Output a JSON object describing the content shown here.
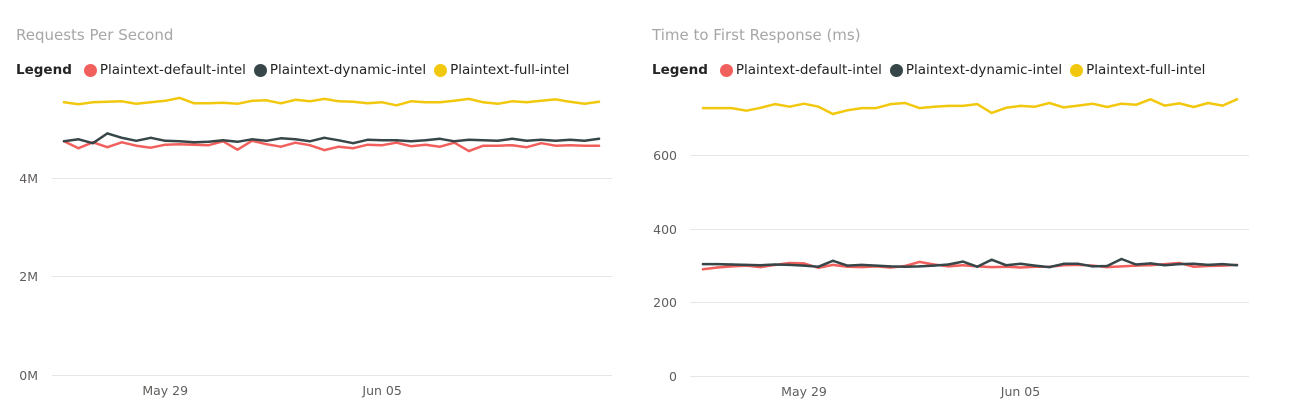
{
  "chart_data": [
    {
      "type": "line",
      "title": "Requests Per Second",
      "legend_title": "Legend",
      "legend_position": "top-left",
      "grid": true,
      "x": [
        1,
        2,
        3,
        4,
        5,
        6,
        7,
        8,
        9,
        10,
        11,
        12,
        13,
        14,
        15,
        16,
        17,
        18,
        19,
        20,
        21,
        22,
        23,
        24,
        25,
        26,
        27,
        28,
        29,
        30,
        31,
        32,
        33,
        34,
        35,
        36,
        37,
        38
      ],
      "xticks": [
        {
          "label": "May 29",
          "x": 8
        },
        {
          "label": "Jun 05",
          "x": 23
        }
      ],
      "ylim": [
        0,
        5800000
      ],
      "yticks": [
        {
          "label": "0M",
          "value": 0
        },
        {
          "label": "2M",
          "value": 2000000
        },
        {
          "label": "4M",
          "value": 4000000
        }
      ],
      "series": [
        {
          "name": "Plaintext-default-intel",
          "color": "#f2605d",
          "values": [
            4740000,
            4600000,
            4720000,
            4620000,
            4720000,
            4650000,
            4610000,
            4670000,
            4680000,
            4670000,
            4660000,
            4740000,
            4570000,
            4750000,
            4680000,
            4630000,
            4710000,
            4660000,
            4560000,
            4630000,
            4600000,
            4670000,
            4660000,
            4710000,
            4640000,
            4670000,
            4630000,
            4710000,
            4540000,
            4650000,
            4650000,
            4660000,
            4620000,
            4700000,
            4650000,
            4660000,
            4650000,
            4650000
          ]
        },
        {
          "name": "Plaintext-dynamic-intel",
          "color": "#374649",
          "values": [
            4740000,
            4780000,
            4700000,
            4900000,
            4810000,
            4750000,
            4810000,
            4750000,
            4740000,
            4720000,
            4730000,
            4760000,
            4730000,
            4780000,
            4750000,
            4800000,
            4780000,
            4740000,
            4810000,
            4760000,
            4700000,
            4770000,
            4760000,
            4760000,
            4740000,
            4760000,
            4790000,
            4740000,
            4770000,
            4760000,
            4750000,
            4790000,
            4750000,
            4770000,
            4750000,
            4770000,
            4750000,
            4790000
          ]
        },
        {
          "name": "Plaintext-full-intel",
          "color": "#f2c80f",
          "values": [
            5530000,
            5490000,
            5530000,
            5540000,
            5550000,
            5500000,
            5530000,
            5560000,
            5620000,
            5510000,
            5510000,
            5520000,
            5500000,
            5560000,
            5570000,
            5510000,
            5580000,
            5550000,
            5600000,
            5550000,
            5540000,
            5510000,
            5530000,
            5470000,
            5550000,
            5530000,
            5530000,
            5560000,
            5600000,
            5530000,
            5500000,
            5550000,
            5530000,
            5560000,
            5590000,
            5540000,
            5500000,
            5540000
          ]
        }
      ]
    },
    {
      "type": "line",
      "title": "Time to First Response (ms)",
      "legend_title": "Legend",
      "legend_position": "top-left",
      "grid": true,
      "x": [
        1,
        2,
        3,
        4,
        5,
        6,
        7,
        8,
        9,
        10,
        11,
        12,
        13,
        14,
        15,
        16,
        17,
        18,
        19,
        20,
        21,
        22,
        23,
        24,
        25,
        26,
        27,
        28,
        29,
        30,
        31,
        32,
        33,
        34,
        35,
        36,
        37,
        38
      ],
      "xticks": [
        {
          "label": "May 29",
          "x": 8
        },
        {
          "label": "Jun 05",
          "x": 23
        }
      ],
      "ylim": [
        0,
        780
      ],
      "yticks": [
        {
          "label": "0",
          "value": 0
        },
        {
          "label": "200",
          "value": 200
        },
        {
          "label": "400",
          "value": 400
        },
        {
          "label": "600",
          "value": 600
        }
      ],
      "series": [
        {
          "name": "Plaintext-default-intel",
          "color": "#f2605d",
          "values": [
            290,
            295,
            298,
            300,
            296,
            302,
            307,
            306,
            294,
            302,
            297,
            296,
            298,
            295,
            299,
            310,
            303,
            298,
            301,
            298,
            296,
            297,
            295,
            297,
            297,
            301,
            302,
            300,
            296,
            298,
            300,
            301,
            304,
            307,
            297,
            299,
            300,
            302
          ]
        },
        {
          "name": "Plaintext-dynamic-intel",
          "color": "#374649",
          "values": [
            304,
            304,
            303,
            302,
            301,
            303,
            302,
            300,
            297,
            313,
            300,
            302,
            300,
            298,
            297,
            298,
            300,
            303,
            311,
            297,
            316,
            301,
            305,
            300,
            296,
            305,
            305,
            298,
            299,
            318,
            303,
            306,
            301,
            304,
            305,
            302,
            304,
            301
          ]
        },
        {
          "name": "Plaintext-full-intel",
          "color": "#f2c80f",
          "values": [
            728,
            728,
            728,
            721,
            729,
            739,
            732,
            740,
            732,
            712,
            722,
            728,
            728,
            739,
            742,
            728,
            732,
            734,
            734,
            739,
            715,
            729,
            734,
            732,
            742,
            730,
            735,
            740,
            731,
            740,
            737,
            752,
            735,
            741,
            731,
            742,
            735,
            752
          ]
        }
      ]
    }
  ]
}
